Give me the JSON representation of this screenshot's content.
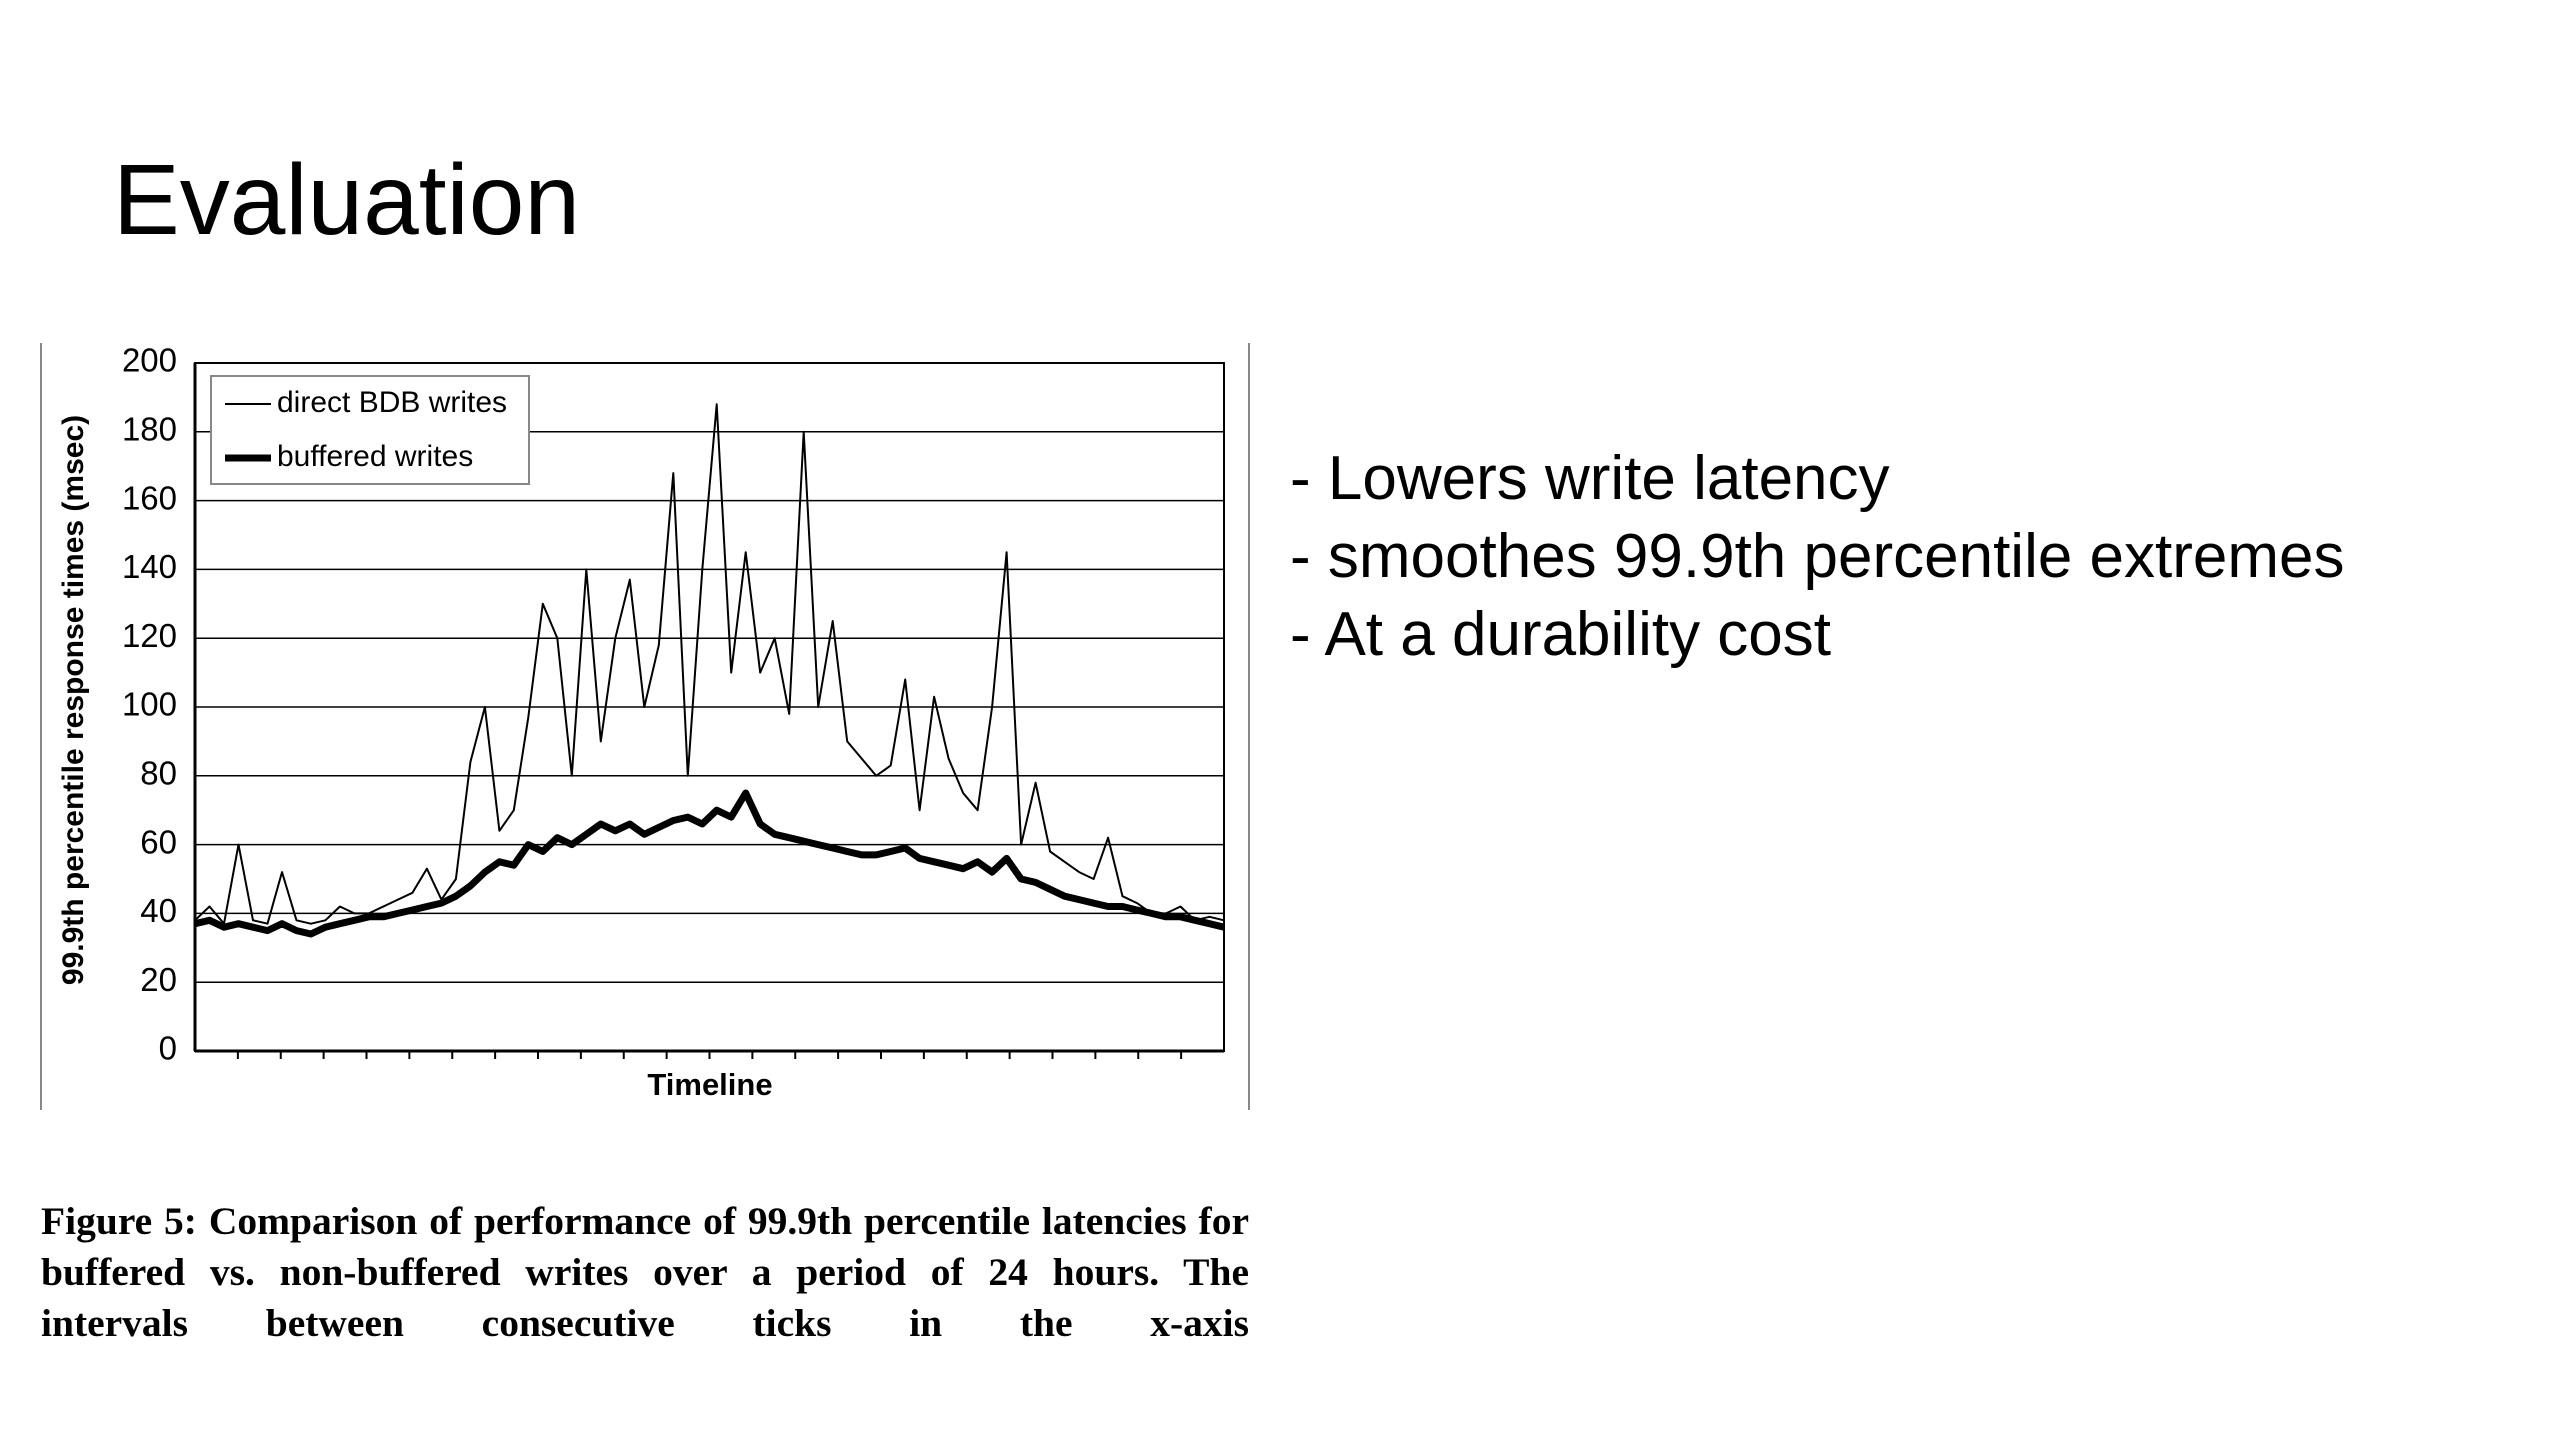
{
  "slide": {
    "title": "Evaluation",
    "bullets": [
      "- Lowers write latency",
      "- smoothes 99.9th percentile extremes",
      "- At a durability cost"
    ],
    "caption": "Figure 5: Comparison of performance of 99.9th percentile latencies for buffered vs. non-buffered writes over a period of 24 hours. The intervals between consecutive ticks in the x-axis"
  },
  "chart_data": {
    "type": "line",
    "xlabel": "Timeline",
    "ylabel": "99.9th percentile response times (msec)",
    "categories": [
      null,
      null,
      null,
      null,
      null,
      null,
      null,
      null,
      null,
      null,
      null,
      null,
      null,
      null,
      null,
      null,
      null,
      null,
      null,
      null,
      null,
      null,
      null,
      null,
      null,
      null,
      null,
      null,
      null,
      null,
      null,
      null,
      null,
      null,
      null,
      null,
      null,
      null,
      null,
      null,
      null,
      null,
      null,
      null,
      null,
      null,
      null,
      null,
      null,
      null,
      null,
      null,
      null,
      null,
      null,
      null,
      null,
      null,
      null,
      null,
      null,
      null,
      null,
      null,
      null,
      null,
      null,
      null,
      null,
      null,
      null,
      null
    ],
    "series": [
      {
        "name": "direct BDB writes",
        "color": "#000000",
        "values": [
          38,
          42,
          37,
          60,
          38,
          37,
          52,
          38,
          37,
          38,
          42,
          40,
          40,
          42,
          44,
          46,
          53,
          44,
          50,
          84,
          100,
          64,
          70,
          97,
          130,
          120,
          80,
          140,
          90,
          120,
          137,
          100,
          118,
          168,
          80,
          140,
          188,
          110,
          145,
          110,
          120,
          98,
          180,
          100,
          125,
          90,
          85,
          80,
          83,
          108,
          70,
          103,
          85,
          75,
          70,
          100,
          145,
          60,
          78,
          58,
          55,
          52,
          50,
          62,
          45,
          43,
          40,
          40,
          42,
          38,
          39,
          38
        ]
      },
      {
        "name": "buffered writes",
        "color": "#000000",
        "values": [
          37,
          38,
          36,
          37,
          36,
          35,
          37,
          35,
          34,
          36,
          37,
          38,
          39,
          39,
          40,
          41,
          42,
          43,
          45,
          48,
          52,
          55,
          54,
          60,
          58,
          62,
          60,
          63,
          66,
          64,
          66,
          63,
          65,
          67,
          68,
          66,
          70,
          68,
          75,
          66,
          63,
          62,
          61,
          60,
          59,
          58,
          57,
          57,
          58,
          59,
          56,
          55,
          54,
          53,
          55,
          52,
          56,
          50,
          49,
          47,
          45,
          44,
          43,
          42,
          42,
          41,
          40,
          39,
          39,
          38,
          37,
          36
        ]
      }
    ],
    "ylim": [
      0,
      200
    ],
    "yticks": [
      0,
      20,
      40,
      60,
      80,
      100,
      120,
      140,
      160,
      180,
      200
    ],
    "grid": true,
    "legend": "upper left"
  }
}
